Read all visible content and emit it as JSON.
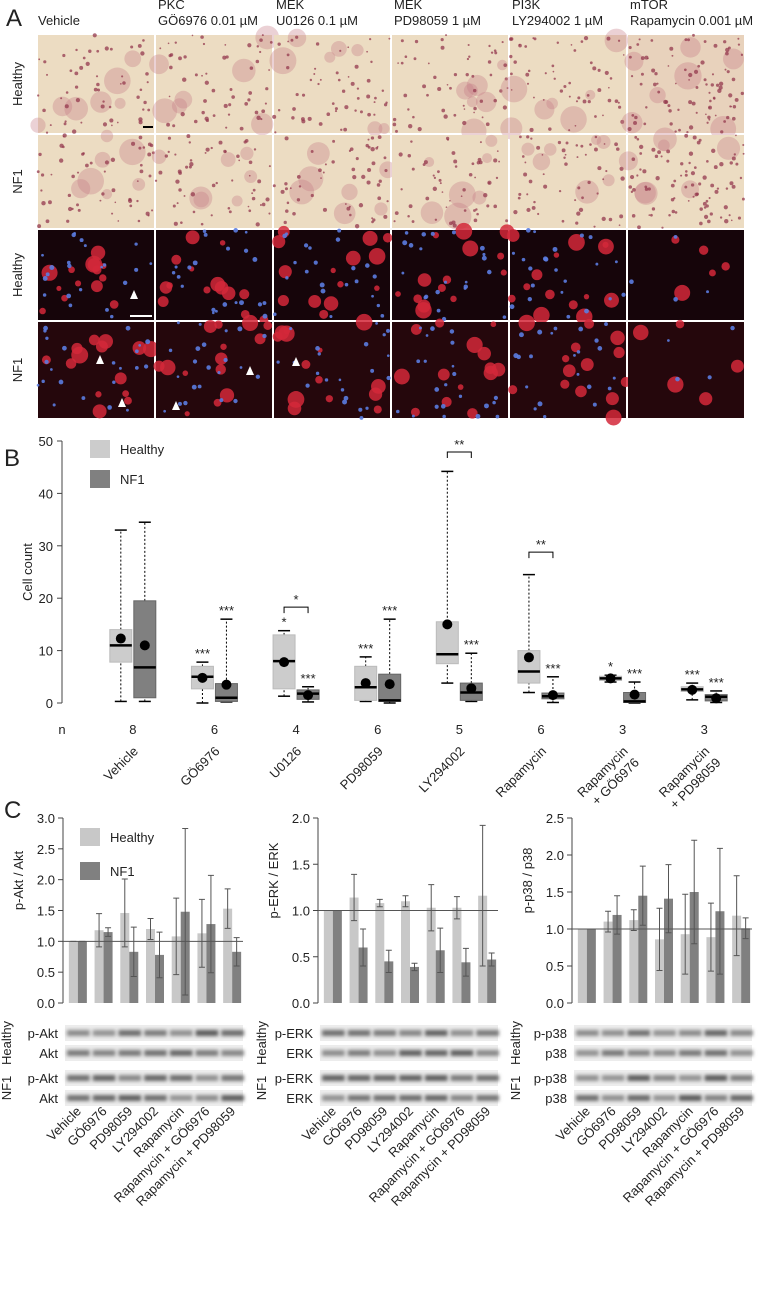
{
  "panel_labels": [
    "A",
    "B",
    "C"
  ],
  "micrographs": {
    "columns": [
      [
        "Vehicle"
      ],
      [
        "PKC",
        "GÖ6976 0.01 µM"
      ],
      [
        "MEK",
        "U0126 0.1 µM"
      ],
      [
        "MEK",
        "PD98059 1 µM"
      ],
      [
        "PI3K",
        "LY294002 1 µM"
      ],
      [
        "mTOR",
        "Rapamycin 0.001 µM"
      ]
    ],
    "rows": [
      "Healthy",
      "NF1",
      "Healthy",
      "NF1"
    ]
  },
  "chart_data": [
    {
      "type": "box",
      "y_label": "Cell count",
      "ylim": [
        0,
        50
      ],
      "yticks": [
        0,
        10,
        20,
        30,
        40,
        50
      ],
      "legend": "upper left",
      "categories": [
        [
          "Vehicle"
        ],
        [
          "GÖ6976"
        ],
        [
          "U0126"
        ],
        [
          "PD98059"
        ],
        [
          "LY294002"
        ],
        [
          "Rapamycin"
        ],
        [
          "Rapamycin",
          "+ GÖ6976"
        ],
        [
          "Rapamycin",
          "+ PD98059"
        ]
      ],
      "n_label": "n",
      "n": [
        8,
        6,
        4,
        6,
        5,
        6,
        3,
        3
      ],
      "series": [
        {
          "name": "Healthy",
          "color": "#cccccc",
          "whisker_low": [
            0.3,
            0,
            1.3,
            0.3,
            3.8,
            2,
            4,
            0.6
          ],
          "q1": [
            7.8,
            2.7,
            2.7,
            0.5,
            7.5,
            3.8,
            4.3,
            2.2
          ],
          "median": [
            11,
            5,
            8,
            3,
            9.3,
            6,
            4.7,
            2.6
          ],
          "q3": [
            14,
            7,
            13,
            7,
            15.5,
            10,
            5.1,
            3.1
          ],
          "whisker_high": [
            33,
            7.8,
            13.8,
            8.8,
            44.2,
            24.5,
            5.3,
            3.8
          ],
          "mean": [
            12.3,
            4.8,
            7.8,
            3.8,
            15,
            8.7,
            4.7,
            2.5
          ],
          "significance": [
            null,
            "***",
            "*",
            "***",
            null,
            null,
            "*",
            "***"
          ]
        },
        {
          "name": "NF1",
          "color": "#808080",
          "whisker_low": [
            0.3,
            0.2,
            0.2,
            0,
            0.3,
            0.1,
            0,
            0.1
          ],
          "q1": [
            1,
            0.3,
            0.7,
            0.3,
            0.5,
            0.8,
            0.1,
            0.4
          ],
          "median": [
            6.8,
            1,
            1.8,
            0.5,
            2,
            1.3,
            0.3,
            1.2
          ],
          "q3": [
            19.5,
            3.7,
            2.5,
            5.5,
            3.8,
            1.9,
            2,
            1.6
          ],
          "whisker_high": [
            34.5,
            16,
            3.1,
            16,
            9.5,
            5,
            4,
            2.3
          ],
          "mean": [
            11,
            3.5,
            1.5,
            3.6,
            2.8,
            1.5,
            1.6,
            0.9
          ],
          "significance": [
            null,
            "***",
            "***",
            "***",
            "***",
            "***",
            "***",
            "***"
          ]
        }
      ],
      "brackets": [
        null,
        null,
        {
          "label": "*",
          "y": 18.3
        },
        null,
        {
          "label": "**",
          "y": 47.9
        },
        {
          "label": "**",
          "y": 28.8
        },
        null,
        null
      ]
    },
    {
      "type": "bar",
      "y_label": "p-Akt / Akt",
      "ylim": [
        0,
        3
      ],
      "yticks": [
        {
          "value": 0,
          "label": "0.0"
        },
        {
          "value": 0.5,
          "label": "0.5"
        },
        {
          "value": 1,
          "label": "1.0"
        },
        {
          "value": 1.5,
          "label": "1.5"
        },
        {
          "value": 2,
          "label": "2.0"
        },
        {
          "value": 2.5,
          "label": "2.5"
        },
        {
          "value": 3,
          "label": "3.0"
        }
      ],
      "reference_line": 1,
      "legend": "upper left",
      "categories": [
        "Vehicle",
        "GÖ6976",
        "PD98059",
        "LY294002",
        "Rapamycin",
        "Rapamycin + GÖ6976",
        "Rapamycin + PD98059"
      ],
      "series": [
        {
          "name": "Healthy",
          "color": "#c8c8c8",
          "values": [
            1,
            1.18,
            1.46,
            1.2,
            1.08,
            1.13,
            1.53
          ],
          "errors": [
            0,
            0.27,
            0.55,
            0.17,
            0.62,
            0.55,
            0.32
          ]
        },
        {
          "name": "NF1",
          "color": "#808080",
          "values": [
            1,
            1.15,
            0.83,
            0.78,
            1.48,
            1.28,
            0.83
          ],
          "errors": [
            0,
            0.07,
            0.4,
            0.37,
            1.35,
            0.79,
            0.23
          ]
        }
      ],
      "blot": {
        "groups": [
          {
            "name": "Healthy",
            "bands": [
              "p-Akt",
              "Akt"
            ]
          },
          {
            "name": "NF1",
            "bands": [
              "p-Akt",
              "Akt"
            ]
          }
        ]
      }
    },
    {
      "type": "bar",
      "y_label": "p-ERK / ERK",
      "ylim": [
        0,
        2
      ],
      "yticks": [
        {
          "value": 0,
          "label": "0.0"
        },
        {
          "value": 0.5,
          "label": "0.5"
        },
        {
          "value": 1,
          "label": "1.0"
        },
        {
          "value": 1.5,
          "label": "1.5"
        },
        {
          "value": 2,
          "label": "2.0"
        }
      ],
      "reference_line": 1,
      "categories": [
        "Vehicle",
        "GÖ6976",
        "PD98059",
        "LY294002",
        "Rapamycin",
        "Rapamycin + GÖ6976",
        "Rapamycin + PD98059"
      ],
      "series": [
        {
          "color": "#c8c8c8",
          "values": [
            1,
            1.14,
            1.08,
            1.1,
            1.03,
            1.03,
            1.16
          ],
          "errors": [
            0,
            0.25,
            0.04,
            0.06,
            0.25,
            0.12,
            0.76
          ]
        },
        {
          "color": "#808080",
          "values": [
            1,
            0.6,
            0.45,
            0.39,
            0.57,
            0.44,
            0.47
          ],
          "errors": [
            0,
            0.2,
            0.12,
            0.04,
            0.24,
            0.15,
            0.07
          ]
        }
      ],
      "blot": {
        "groups": [
          {
            "name": "Healthy",
            "bands": [
              "p-ERK",
              "ERK"
            ]
          },
          {
            "name": "NF1",
            "bands": [
              "p-ERK",
              "ERK"
            ]
          }
        ]
      }
    },
    {
      "type": "bar",
      "y_label": "p-p38 / p38",
      "ylim": [
        0,
        2.5
      ],
      "yticks": [
        {
          "value": 0,
          "label": "0.0"
        },
        {
          "value": 0.5,
          "label": "0.5"
        },
        {
          "value": 1,
          "label": "1.0"
        },
        {
          "value": 1.5,
          "label": "1.5"
        },
        {
          "value": 2,
          "label": "2.0"
        },
        {
          "value": 2.5,
          "label": "2.5"
        }
      ],
      "reference_line": 1,
      "categories": [
        "Vehicle",
        "GÖ6976",
        "PD98059",
        "LY294002",
        "Rapamycin",
        "Rapamycin + GÖ6976",
        "Rapamycin + PD98059"
      ],
      "series": [
        {
          "color": "#c8c8c8",
          "values": [
            1,
            1.1,
            1.12,
            0.86,
            0.93,
            0.89,
            1.18
          ],
          "errors": [
            0,
            0.14,
            0.14,
            0.42,
            0.54,
            0.46,
            0.54
          ]
        },
        {
          "color": "#808080",
          "values": [
            1,
            1.19,
            1.45,
            1.41,
            1.5,
            1.24,
            1.01
          ],
          "errors": [
            0,
            0.26,
            0.4,
            0.46,
            0.7,
            0.85,
            0.14
          ]
        }
      ],
      "blot": {
        "groups": [
          {
            "name": "Healthy",
            "bands": [
              "p-p38",
              "p38"
            ]
          },
          {
            "name": "NF1",
            "bands": [
              "p-p38",
              "p38"
            ]
          }
        ]
      }
    }
  ]
}
